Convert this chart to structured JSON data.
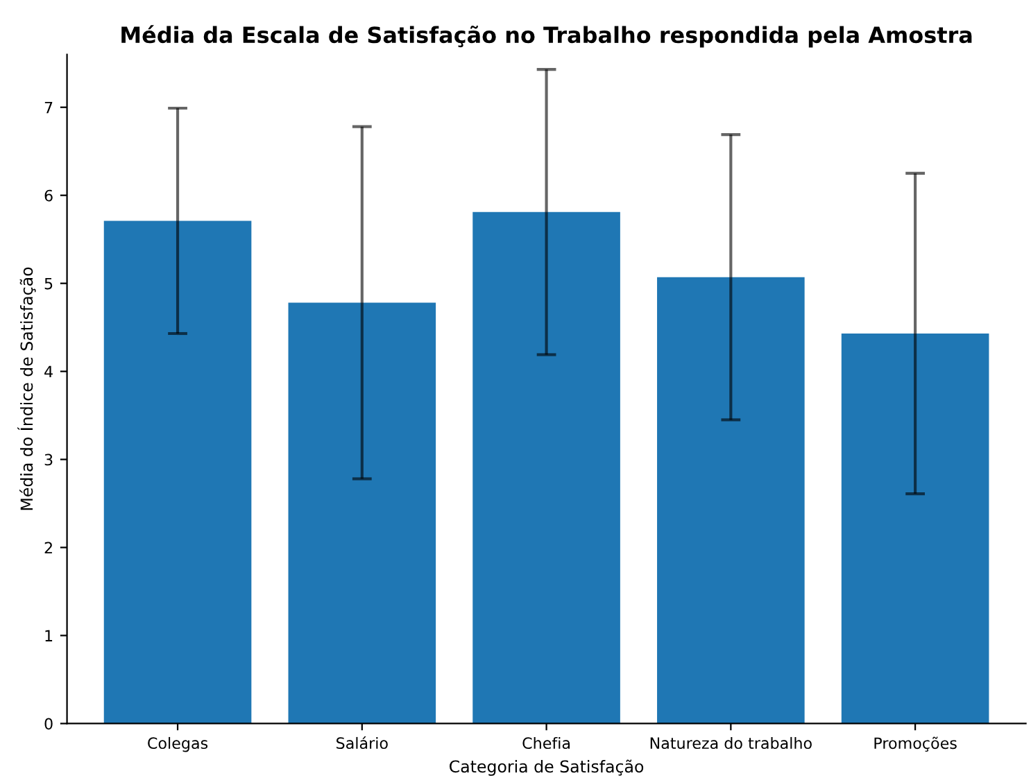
{
  "chart_data": {
    "type": "bar",
    "title": "Média da Escala de Satisfação no Trabalho respondida pela Amostra",
    "xlabel": "Categoria de Satisfação",
    "ylabel": "Média do Índice de Satisfação",
    "categories": [
      "Colegas",
      "Salário",
      "Chefia",
      "Natureza do trabalho",
      "Promoções"
    ],
    "values": [
      5.71,
      4.78,
      5.81,
      5.07,
      4.43
    ],
    "errors": [
      1.28,
      2.0,
      1.62,
      1.62,
      1.82
    ],
    "color": "#1f77b4",
    "ylim": [
      0,
      7.6
    ],
    "yticks": [
      0,
      1,
      2,
      3,
      4,
      5,
      6,
      7
    ],
    "grid": false
  }
}
